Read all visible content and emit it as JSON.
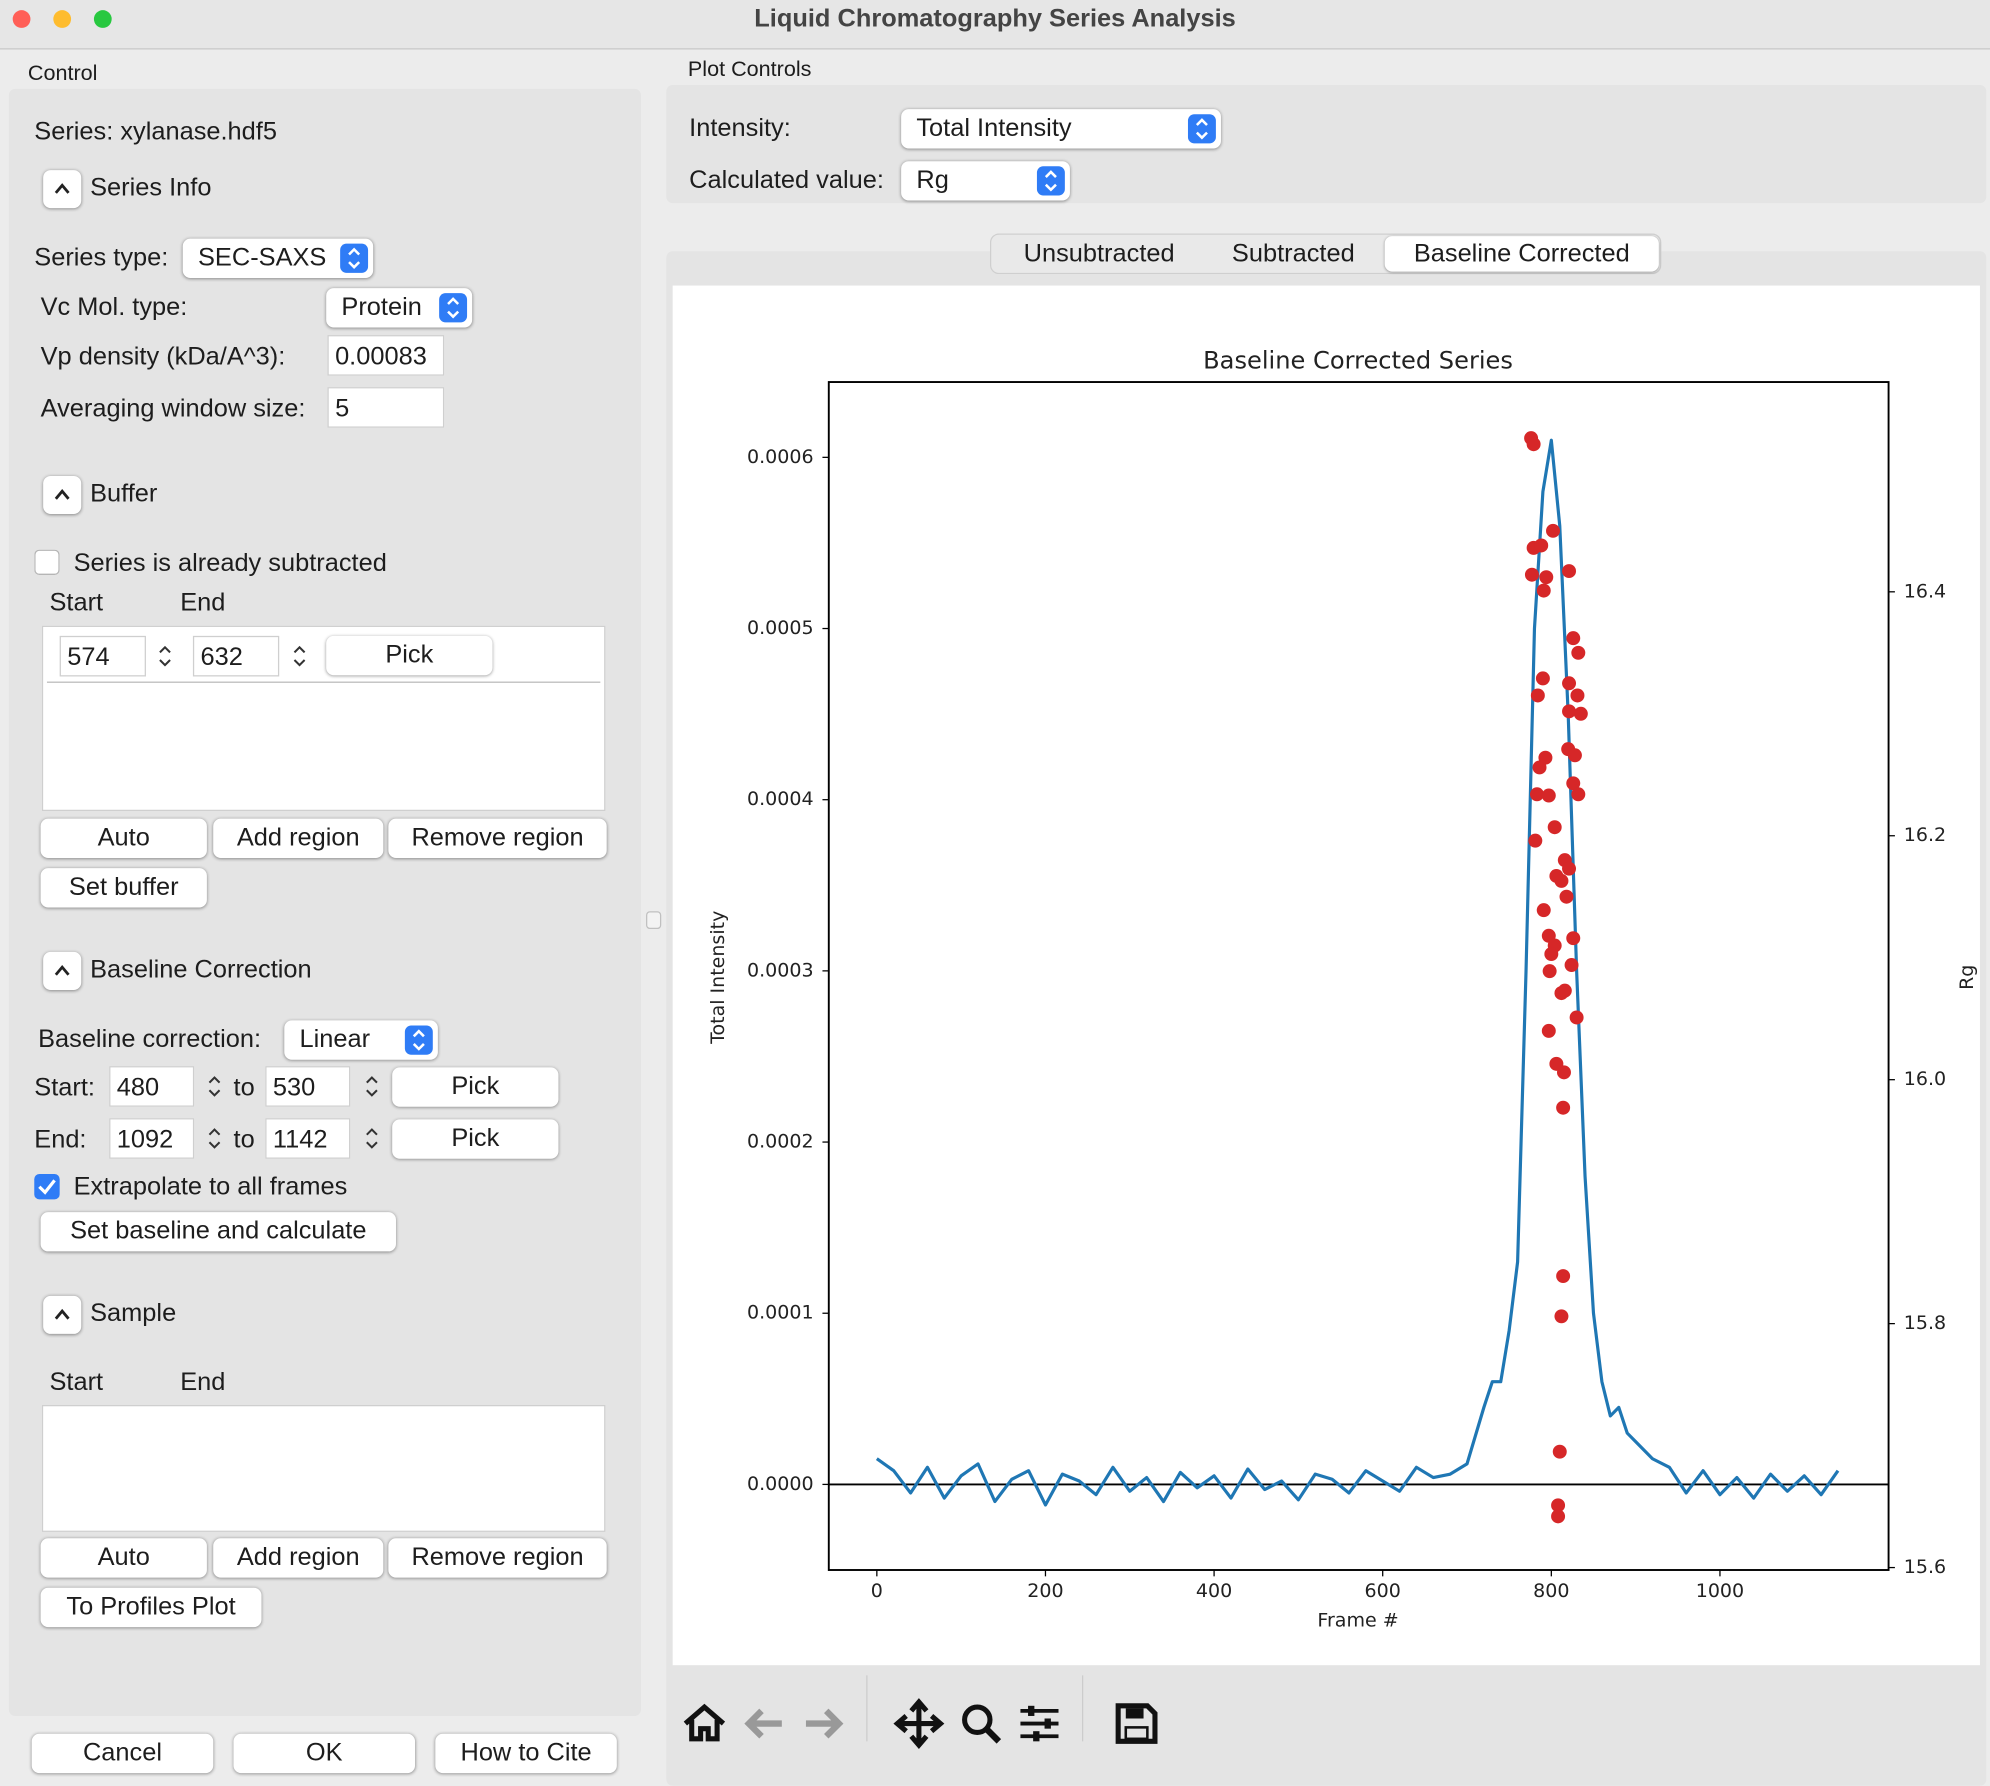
{
  "window": {
    "title": "Liquid Chromatography Series Analysis"
  },
  "control": {
    "title": "Control",
    "series": "Series: xylanase.hdf5",
    "series_info": {
      "heading": "Series Info",
      "series_type_label": "Series type:",
      "series_type": "SEC-SAXS",
      "vc_label": "Vc Mol. type:",
      "vc_value": "Protein",
      "vp_label": "Vp density (kDa/A^3):",
      "vp_value": "0.00083",
      "avg_label": "Averaging window size:",
      "avg_value": "5"
    },
    "buffer": {
      "heading": "Buffer",
      "already_subtracted": "Series is already subtracted",
      "already_subtracted_checked": false,
      "start_header": "Start",
      "end_header": "End",
      "regions": [
        {
          "start": "574",
          "end": "632",
          "pick": "Pick"
        }
      ],
      "buttons": [
        "Auto",
        "Add region",
        "Remove region"
      ],
      "set_buffer": "Set buffer"
    },
    "baseline": {
      "heading": "Baseline Correction",
      "label": "Baseline correction:",
      "value": "Linear",
      "start_label": "Start:",
      "start_from": "480",
      "to": "to",
      "start_to": "530",
      "pick": "Pick",
      "end_label": "End:",
      "end_from": "1092",
      "end_to": "1142",
      "extrapolate": "Extrapolate to all frames",
      "extrapolate_checked": true,
      "set": "Set baseline and calculate"
    },
    "sample": {
      "heading": "Sample",
      "start_header": "Start",
      "end_header": "End",
      "buttons": [
        "Auto",
        "Add region",
        "Remove region"
      ],
      "to_profiles": "To Profiles Plot"
    },
    "footer": [
      "Cancel",
      "OK",
      "How to Cite"
    ]
  },
  "plot_controls": {
    "title": "Plot Controls",
    "intensity_label": "Intensity:",
    "intensity": "Total Intensity",
    "calc_label": "Calculated value:",
    "calc": "Rg",
    "tabs": [
      "Unsubtracted",
      "Subtracted",
      "Baseline Corrected"
    ],
    "active_tab": 2
  },
  "chart_data": {
    "type": "line",
    "title": "Baseline Corrected Series",
    "xlabel": "Frame #",
    "ylabel": "Total Intensity",
    "y2label": "Rg",
    "xlim": [
      -57,
      1200
    ],
    "xticks": [
      0,
      200,
      400,
      600,
      800,
      1000
    ],
    "ylim": [
      -5e-05,
      0.000644
    ],
    "yticks": [
      {
        "value": 0,
        "label": "0.0000"
      },
      0.0001,
      0.0002,
      0.0003,
      0.0004,
      0.0005,
      0.0006
    ],
    "y2lim": [
      15.598,
      16.572
    ],
    "y2ticks": [
      15.6,
      15.8,
      {
        "value": 16.0,
        "label": "16.0"
      },
      16.2,
      16.4
    ],
    "series": [
      {
        "type": "line",
        "color": "#1f77b4",
        "x": [
          0,
          20,
          40,
          60,
          80,
          100,
          120,
          140,
          160,
          180,
          200,
          220,
          240,
          260,
          280,
          300,
          320,
          340,
          360,
          380,
          400,
          420,
          440,
          460,
          480,
          500,
          520,
          540,
          560,
          580,
          600,
          620,
          640,
          660,
          680,
          700,
          720,
          730,
          740,
          750,
          760,
          770,
          780,
          790,
          800,
          810,
          820,
          830,
          840,
          850,
          860,
          870,
          880,
          890,
          900,
          920,
          940,
          960,
          980,
          1000,
          1020,
          1040,
          1060,
          1080,
          1100,
          1120,
          1140
        ],
        "values": [
          1.5e-05,
          8e-06,
          -5e-06,
          1e-05,
          -8e-06,
          5e-06,
          1.2e-05,
          -1e-05,
          3e-06,
          8e-06,
          -1.2e-05,
          6e-06,
          2e-06,
          -6e-06,
          1e-05,
          -4e-06,
          4e-06,
          -1e-05,
          7e-06,
          -2e-06,
          5e-06,
          -8e-06,
          9e-06,
          -3e-06,
          2e-06,
          -9e-06,
          6e-06,
          3e-06,
          -5e-06,
          8e-06,
          2e-06,
          -4e-06,
          1e-05,
          4e-06,
          6e-06,
          1.2e-05,
          4.5e-05,
          6e-05,
          6e-05,
          9e-05,
          0.00013,
          0.0003,
          0.0005,
          0.00058,
          0.00061,
          0.00056,
          0.00045,
          0.0003,
          0.00018,
          0.0001,
          6e-05,
          4e-05,
          4.5e-05,
          3e-05,
          2.5e-05,
          1.5e-05,
          1e-05,
          -5e-06,
          8e-06,
          -6e-06,
          4e-06,
          -8e-06,
          6e-06,
          -4e-06,
          5e-06,
          -6e-06,
          8e-06
        ]
      },
      {
        "type": "scatter",
        "axis": "y2",
        "color": "#d62728",
        "x": [
          776,
          779,
          802,
          779,
          788,
          777,
          794,
          821,
          791,
          826,
          832,
          790,
          821,
          784,
          831,
          821,
          835,
          820,
          828,
          793,
          786,
          826,
          783,
          797,
          832,
          804,
          781,
          816,
          821,
          806,
          812,
          818,
          791,
          797,
          804,
          826,
          800,
          824,
          798,
          816,
          812,
          830,
          797,
          806,
          815,
          814,
          814,
          812,
          810,
          808,
          808
        ],
        "values": [
          16.526,
          16.521,
          16.45,
          16.436,
          16.438,
          16.414,
          16.412,
          16.417,
          16.401,
          16.362,
          16.35,
          16.329,
          16.325,
          16.315,
          16.315,
          16.302,
          16.3,
          16.271,
          16.266,
          16.264,
          16.256,
          16.243,
          16.234,
          16.233,
          16.234,
          16.207,
          16.196,
          16.18,
          16.173,
          16.167,
          16.163,
          16.15,
          16.139,
          16.118,
          16.11,
          16.116,
          16.103,
          16.094,
          16.089,
          16.073,
          16.071,
          16.051,
          16.04,
          16.013,
          16.006,
          15.977,
          15.839,
          15.806,
          15.695,
          15.651,
          15.642
        ]
      }
    ]
  }
}
